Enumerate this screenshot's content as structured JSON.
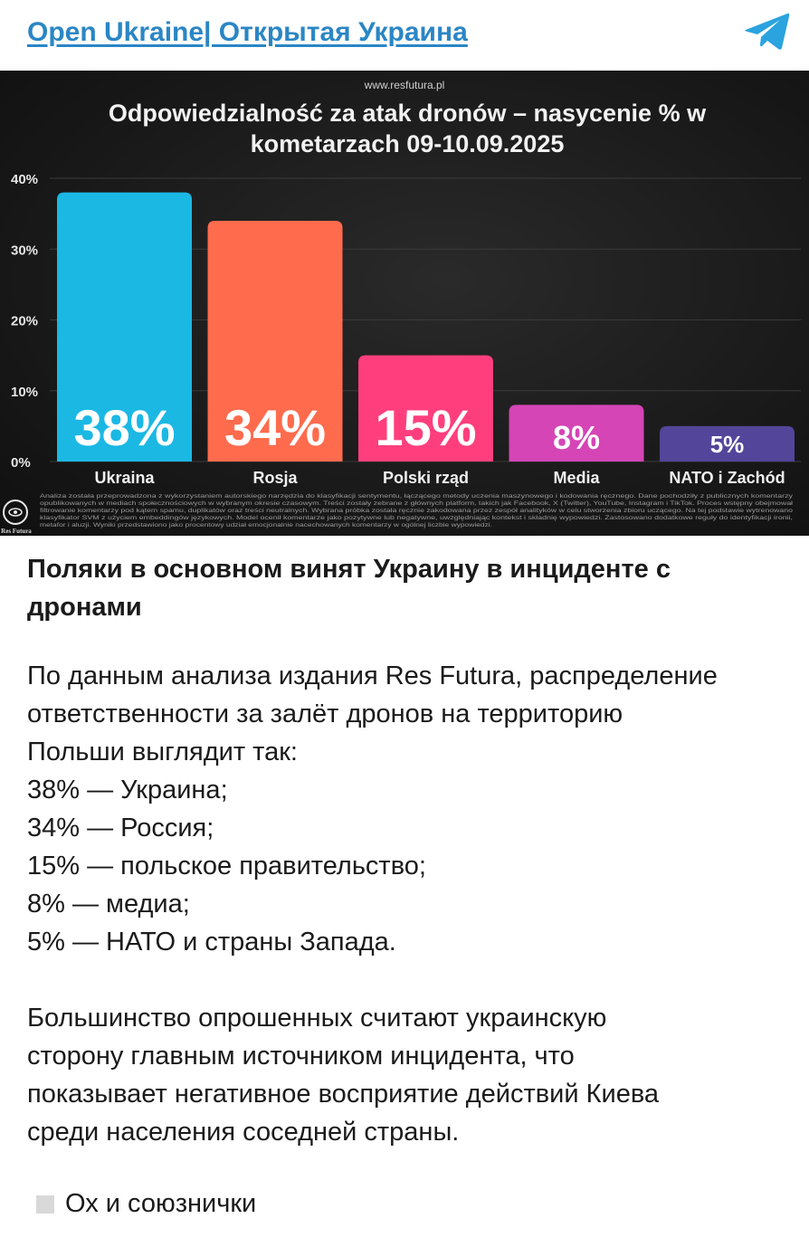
{
  "header": {
    "channel_name": "Open Ukraine| Открытая Украина",
    "icon": "telegram-icon"
  },
  "chart_data": {
    "type": "bar",
    "source": "www.resfutura.pl",
    "title_line1": "Odpowiedzialność za atak dronów – nasycenie % w",
    "title_line2": "kometarzach 09-10.09.2025",
    "categories": [
      "Ukraina",
      "Rosja",
      "Polski rząd",
      "Media",
      "NATO i Zachód"
    ],
    "values": [
      38,
      34,
      15,
      8,
      5
    ],
    "value_labels": [
      "38%",
      "34%",
      "15%",
      "8%",
      "5%"
    ],
    "colors": [
      "#1bb8e4",
      "#ff6b4d",
      "#ff3f7d",
      "#d545b6",
      "#53459a"
    ],
    "ylim": [
      0,
      40
    ],
    "yticks": [
      "0%",
      "10%",
      "20%",
      "30%",
      "40%"
    ],
    "grid": true,
    "footnote": [
      "Analiza została przeprowadzona z wykorzystaniem autorskiego narzędzia do klasyfikacji sentymentu, łączącego metody uczenia maszynowego i kodowania ręcznego. Dane pochodziły z publicznych komentarzy",
      "opublikowanych w mediach społecznościowych w wybranym okresie czasowym. Treści zostały zebrane z głównych platform, takich jak Facebook, X (Twitter), YouTube, Instagram i TikTok. Proces wstępny obejmował",
      "filtrowanie komentarzy pod kątem spamu, duplikatów oraz treści neutralnych. Wybrana próbka została ręcznie zakodowana przez zespół analityków w celu stworzenia zbioru uczącego. Na tej podstawie wytrenowano",
      "klasyfikator SVM z użyciem embeddingów językowych. Model ocenił komentarze jako pozytywne lub negatywne, uwzględniając kontekst i składnię wypowiedzi. Zastosowano dodatkowe reguły do identyfikacji ironii,",
      "metafor i aluzji. Wyniki przedstawiono jako procentowy udział emocjonalnie nacechowanych komentarzy w ogólnej liczbie wypowiedzi."
    ],
    "logo_text": "Res Futura"
  },
  "post": {
    "title_line1": "Поляки в основном винят Украину в инциденте с",
    "title_line2": "дронами",
    "para1": [
      "По данным анализа издания Res Futura, распределение",
      "ответственности за залёт дронов на территорию",
      "Польши выглядит так:",
      "38% — Украина;",
      "34% — Россия;",
      "15% — польское правительство;",
      "8% — медиа;",
      "5% — НАТО и страны Запада."
    ],
    "para2": [
      "Большинство опрошенных считают украинскую",
      "сторону главным источником инцидента, что",
      "показывает негативное восприятие действий Киева",
      "среди населения соседней страны."
    ],
    "footer": "Ох и союзнички"
  }
}
